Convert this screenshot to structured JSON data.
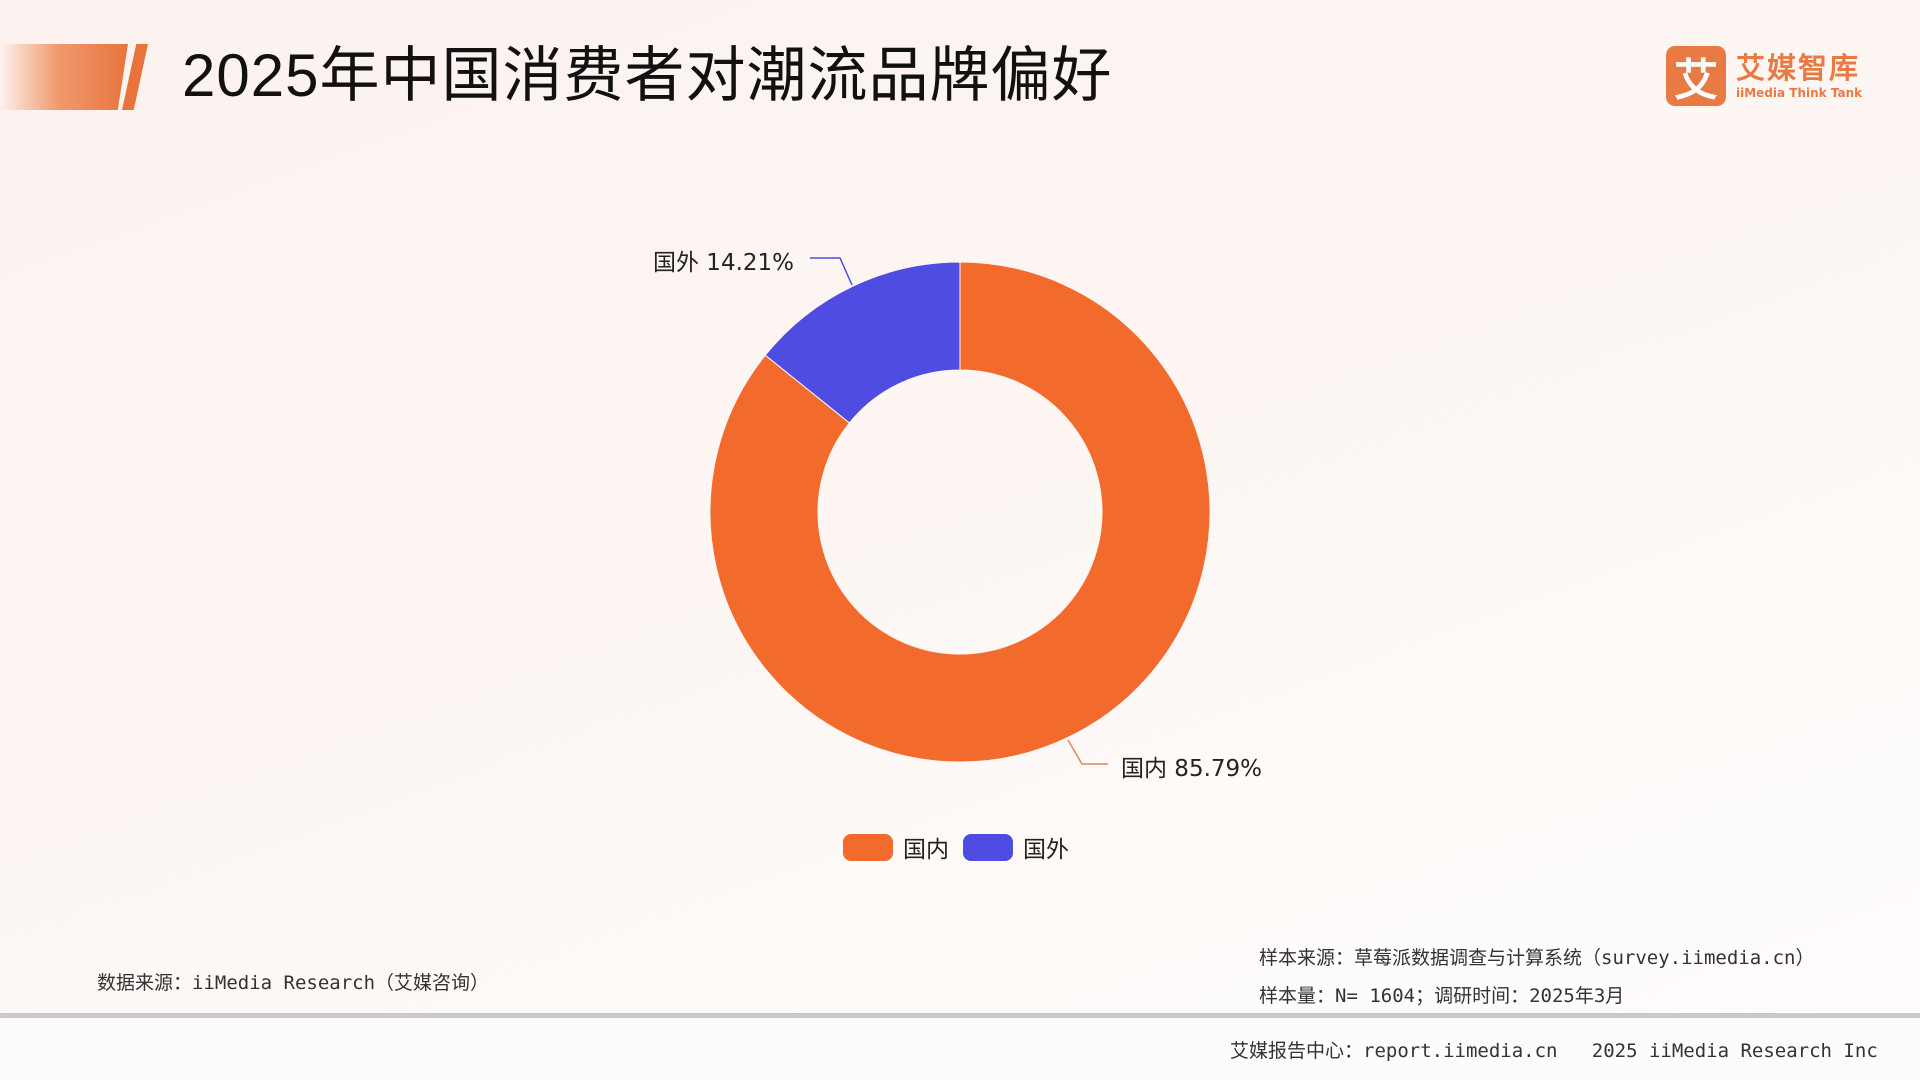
{
  "header": {
    "title": "2025年中国消费者对潮流品牌偏好",
    "logo": {
      "glyph": "艾",
      "name_cn": "艾媒智库",
      "name_en": "iiMedia Think Tank",
      "color": "#ea7a44"
    }
  },
  "chart_data": {
    "type": "pie",
    "variant": "donut",
    "title": "2025年中国消费者对潮流品牌偏好",
    "categories": [
      "国内",
      "国外"
    ],
    "values": [
      85.79,
      14.21
    ],
    "unit": "%",
    "colors": [
      "#f26b2c",
      "#4f4ce2"
    ],
    "labels": [
      "国内 85.79%",
      "国外 14.21%"
    ],
    "legend": {
      "position": "bottom",
      "entries": [
        "国内",
        "国外"
      ]
    },
    "start_angle": "12 o'clock, clockwise"
  },
  "labels": {
    "domestic": "国内 85.79%",
    "foreign": "国外 14.21%"
  },
  "legend": {
    "items": [
      {
        "label": "国内",
        "color": "#f26b2c"
      },
      {
        "label": "国外",
        "color": "#4f4ce2"
      }
    ]
  },
  "footer": {
    "data_source": "数据来源：iiMedia Research（艾媒咨询）",
    "sample_source": "样本来源：草莓派数据调查与计算系统（survey.iimedia.cn）",
    "sample_size": "样本量：N= 1604；调研时间：2025年3月",
    "report_center": "艾媒报告中心：report.iimedia.cn   2025 iiMedia Research Inc"
  }
}
